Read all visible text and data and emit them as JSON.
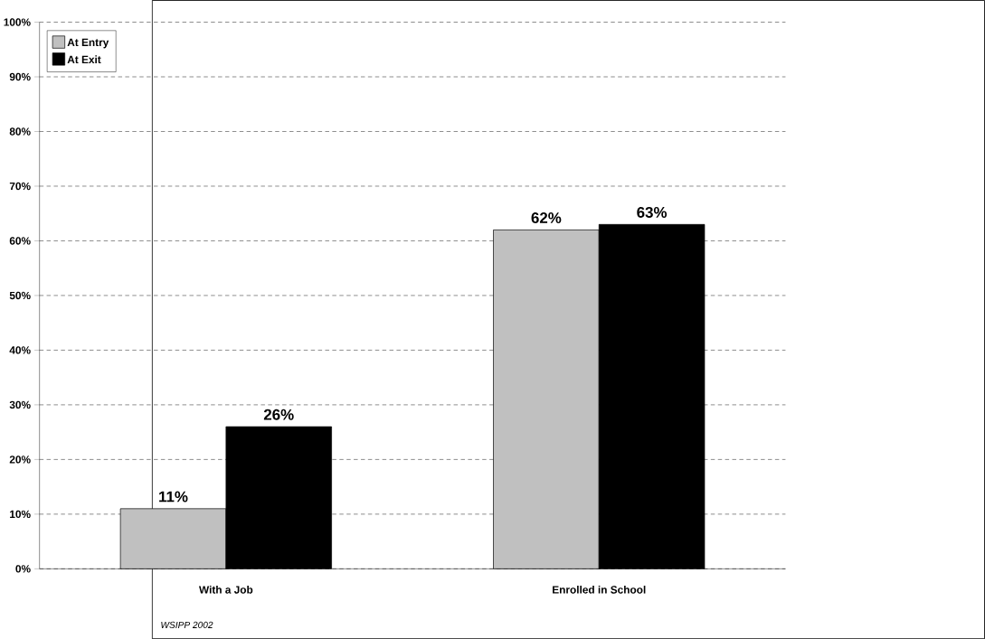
{
  "chart_data": {
    "type": "bar",
    "categories": [
      "With a Job",
      "Enrolled in School"
    ],
    "series": [
      {
        "name": "At Entry",
        "color": "#c0c0c0",
        "values": [
          11,
          62
        ],
        "value_labels": [
          "11%",
          "62%"
        ]
      },
      {
        "name": "At Exit",
        "color": "#000000",
        "values": [
          26,
          63
        ],
        "value_labels": [
          "26%",
          "63%"
        ]
      }
    ],
    "ylim": [
      0,
      100
    ],
    "yticks": [
      {
        "value": 0,
        "label": "0%"
      },
      {
        "value": 10,
        "label": "10%"
      },
      {
        "value": 20,
        "label": "20%"
      },
      {
        "value": 30,
        "label": "30%"
      },
      {
        "value": 40,
        "label": "40%"
      },
      {
        "value": 50,
        "label": "50%"
      },
      {
        "value": 60,
        "label": "60%"
      },
      {
        "value": 70,
        "label": "70%"
      },
      {
        "value": 80,
        "label": "80%"
      },
      {
        "value": 90,
        "label": "90%"
      },
      {
        "value": 100,
        "label": "100%"
      }
    ],
    "grid": "y",
    "legend": "top left",
    "annotations": [
      "WSIPP 2002"
    ]
  }
}
